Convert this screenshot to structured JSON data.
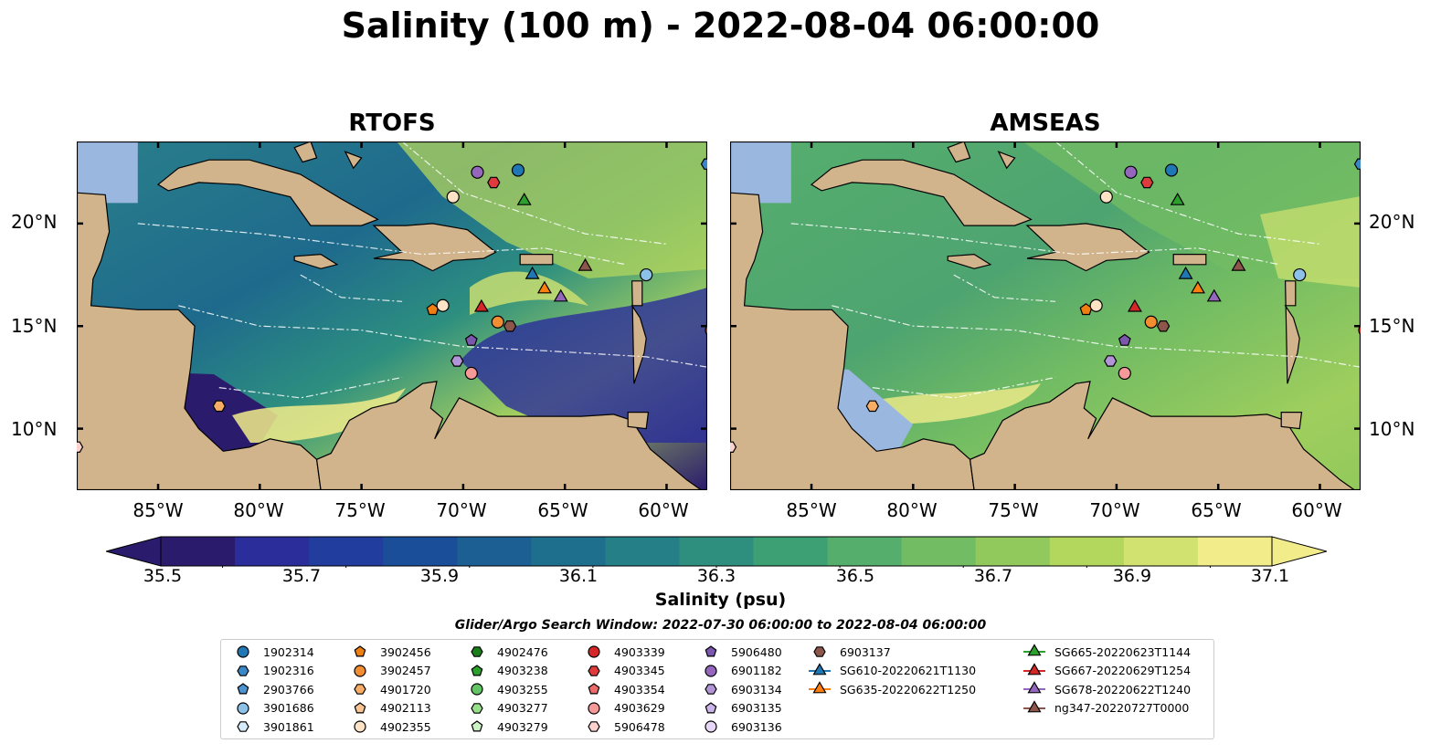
{
  "title": "Salinity (100 m) - 2022-08-04 06:00:00",
  "panels": [
    {
      "title": "RTOFS",
      "field": "rtofs"
    },
    {
      "title": "AMSEAS",
      "field": "amseas"
    }
  ],
  "map": {
    "lat_labels": [
      "20°N",
      "15°N",
      "10°N"
    ],
    "lon_labels": [
      "85°W",
      "80°W",
      "75°W",
      "70°W",
      "65°W",
      "60°W"
    ],
    "extent": {
      "lon_min": -89,
      "lon_max": -58,
      "lat_min": 7,
      "lat_max": 24
    },
    "colors": {
      "land": "#d2b48c",
      "ocean": "#9ab7e0",
      "eez": "#ffffff"
    }
  },
  "colorbar": {
    "label": "Salinity (psu)",
    "ticks": [
      "35.5",
      "35.7",
      "35.9",
      "36.1",
      "36.3",
      "36.5",
      "36.7",
      "36.9",
      "37.1"
    ],
    "range": [
      35.4,
      37.2
    ],
    "extend": "both",
    "colors": [
      "#2b1b6d",
      "#2b2d9b",
      "#213d9e",
      "#1a4e99",
      "#1b5f93",
      "#1e6e8d",
      "#247f87",
      "#2e8f7e",
      "#3d9f74",
      "#56ae6d",
      "#72bc63",
      "#92c95c",
      "#b3d65c",
      "#d2e271",
      "#f2ec8a"
    ]
  },
  "search_window": "Glider/Argo Search Window: 2022-07-30 06:00:00 to 2022-08-04 06:00:00",
  "legend": {
    "columns": [
      [
        {
          "label": "1902314",
          "marker": "circle",
          "color": "#1f77b4"
        },
        {
          "label": "1902316",
          "marker": "hexagon",
          "color": "#3a87c8"
        },
        {
          "label": "2903766",
          "marker": "pentagon",
          "color": "#4c93cf"
        },
        {
          "label": "3901686",
          "marker": "circle",
          "color": "#8cc1e8"
        },
        {
          "label": "3901861",
          "marker": "hexagon",
          "color": "#d6ecfa"
        }
      ],
      [
        {
          "label": "3902456",
          "marker": "pentagon",
          "color": "#ef7f12"
        },
        {
          "label": "3902457",
          "marker": "circle",
          "color": "#f38d31"
        },
        {
          "label": "4901720",
          "marker": "hexagon",
          "color": "#f8ad66"
        },
        {
          "label": "4902113",
          "marker": "pentagon",
          "color": "#fbc593"
        },
        {
          "label": "4902355",
          "marker": "circle",
          "color": "#fde3c6"
        }
      ],
      [
        {
          "label": "4902476",
          "marker": "hexagon",
          "color": "#1a7f1a"
        },
        {
          "label": "4903238",
          "marker": "pentagon",
          "color": "#2ca02c"
        },
        {
          "label": "4903255",
          "marker": "circle",
          "color": "#62c462"
        },
        {
          "label": "4903277",
          "marker": "hexagon",
          "color": "#98df8a"
        },
        {
          "label": "4903279",
          "marker": "pentagon",
          "color": "#cdf3c4"
        }
      ],
      [
        {
          "label": "4903339",
          "marker": "circle",
          "color": "#d62728"
        },
        {
          "label": "4903345",
          "marker": "hexagon",
          "color": "#e03b3c"
        },
        {
          "label": "4903354",
          "marker": "pentagon",
          "color": "#ec6a6a"
        },
        {
          "label": "4903629",
          "marker": "circle",
          "color": "#f59a98"
        },
        {
          "label": "5906478",
          "marker": "hexagon",
          "color": "#fcd2cf"
        }
      ],
      [
        {
          "label": "5906480",
          "marker": "pentagon",
          "color": "#7b57ad"
        },
        {
          "label": "6901182",
          "marker": "circle",
          "color": "#9467bd"
        },
        {
          "label": "6903134",
          "marker": "hexagon",
          "color": "#b295d6"
        },
        {
          "label": "6903135",
          "marker": "pentagon",
          "color": "#cbb4ea"
        },
        {
          "label": "6903136",
          "marker": "circle",
          "color": "#e7d6f5"
        }
      ],
      [
        {
          "label": "6903137",
          "marker": "hexagon",
          "color": "#8c564b"
        },
        {
          "label": "SG610-20220621T1130",
          "marker": "triangle-line",
          "color": "#1f77b4"
        },
        {
          "label": "SG635-20220622T1250",
          "marker": "triangle-line",
          "color": "#ff7f0e"
        }
      ],
      [
        {
          "label": "SG665-20220623T1144",
          "marker": "triangle-line",
          "color": "#2ca02c"
        },
        {
          "label": "SG667-20220629T1254",
          "marker": "triangle-line",
          "color": "#d62728"
        },
        {
          "label": "SG678-20220622T1240",
          "marker": "triangle-line",
          "color": "#9467bd"
        },
        {
          "label": "ng347-20220727T0000",
          "marker": "triangle-line",
          "color": "#8c564b"
        }
      ]
    ]
  },
  "platforms": [
    {
      "id": "1902314",
      "lon": -67.3,
      "lat": 22.6,
      "marker": "circle",
      "color": "#1f77b4"
    },
    {
      "id": "1902316",
      "lon": -58.0,
      "lat": 22.9,
      "marker": "hexagon",
      "color": "#3a87c8"
    },
    {
      "id": "3901686",
      "lon": -61.0,
      "lat": 17.5,
      "marker": "circle",
      "color": "#8cc1e8"
    },
    {
      "id": "3902456",
      "lon": -71.5,
      "lat": 15.8,
      "marker": "pentagon",
      "color": "#ef7f12"
    },
    {
      "id": "3902457",
      "lon": -68.3,
      "lat": 15.2,
      "marker": "circle",
      "color": "#f38d31"
    },
    {
      "id": "4901720",
      "lon": -82.0,
      "lat": 11.1,
      "marker": "hexagon",
      "color": "#f8ad66"
    },
    {
      "id": "4902355",
      "lon": -71.0,
      "lat": 16.0,
      "marker": "circle",
      "color": "#fde3c6"
    },
    {
      "id": "4902355",
      "lon": -70.5,
      "lat": 21.3,
      "marker": "circle",
      "color": "#fde3c6"
    },
    {
      "id": "4903339",
      "lon": -57.8,
      "lat": 14.8,
      "marker": "circle",
      "color": "#d62728"
    },
    {
      "id": "4903345",
      "lon": -68.5,
      "lat": 22.0,
      "marker": "hexagon",
      "color": "#e03b3c"
    },
    {
      "id": "4903629",
      "lon": -69.6,
      "lat": 12.7,
      "marker": "circle",
      "color": "#f59a98"
    },
    {
      "id": "5906478",
      "lon": -89.0,
      "lat": 9.1,
      "marker": "hexagon",
      "color": "#fcd2cf"
    },
    {
      "id": "5906480",
      "lon": -69.6,
      "lat": 14.3,
      "marker": "pentagon",
      "color": "#7b57ad"
    },
    {
      "id": "6901182",
      "lon": -69.3,
      "lat": 22.5,
      "marker": "circle",
      "color": "#9467bd"
    },
    {
      "id": "6903134",
      "lon": -70.3,
      "lat": 13.3,
      "marker": "hexagon",
      "color": "#b295d6"
    },
    {
      "id": "6903137",
      "lon": -67.7,
      "lat": 15.0,
      "marker": "hexagon",
      "color": "#8c564b"
    },
    {
      "id": "SG610-20220621T1130",
      "lon": -66.6,
      "lat": 17.5,
      "marker": "triangle",
      "color": "#1f77b4"
    },
    {
      "id": "SG635-20220622T1250",
      "lon": -66.0,
      "lat": 16.8,
      "marker": "triangle",
      "color": "#ff7f0e"
    },
    {
      "id": "SG665-20220623T1144",
      "lon": -67.0,
      "lat": 21.1,
      "marker": "triangle",
      "color": "#2ca02c"
    },
    {
      "id": "SG667-20220629T1254",
      "lon": -69.1,
      "lat": 15.9,
      "marker": "triangle",
      "color": "#d62728"
    },
    {
      "id": "SG678-20220622T1240",
      "lon": -65.2,
      "lat": 16.4,
      "marker": "triangle",
      "color": "#9467bd"
    },
    {
      "id": "ng347-20220727T0000",
      "lon": -64.0,
      "lat": 17.9,
      "marker": "triangle",
      "color": "#8c564b"
    }
  ]
}
